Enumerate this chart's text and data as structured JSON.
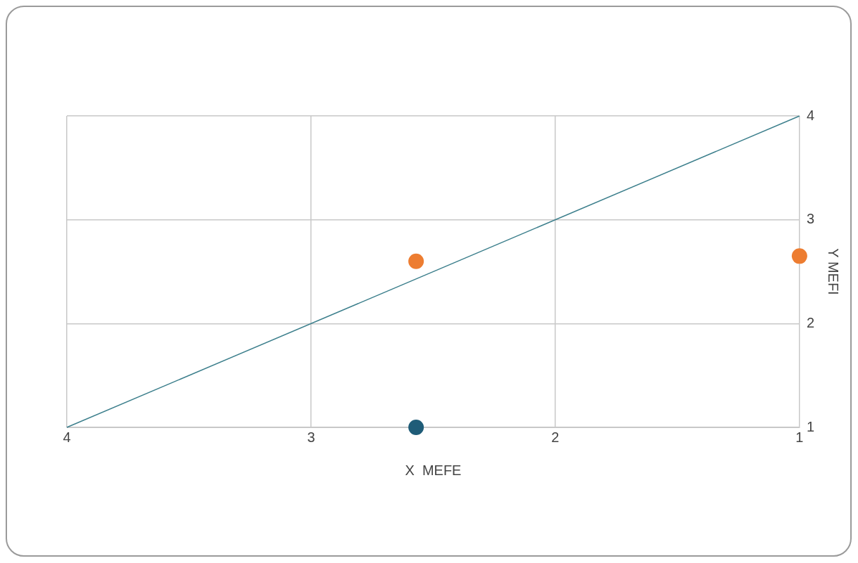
{
  "chart_data": {
    "type": "scatter",
    "xlabel": "X  MEFE",
    "ylabel": "Y MEFI",
    "xlim": [
      4,
      1
    ],
    "xticks": [
      4,
      3,
      2,
      1
    ],
    "ylim": [
      1,
      4
    ],
    "yticks": [
      1,
      2,
      3,
      4
    ],
    "grid": true,
    "legend": false,
    "series": [
      {
        "type": "line",
        "color": "#3c7f8c",
        "marker": "none",
        "x": [
          4,
          1
        ],
        "values": [
          1,
          4
        ]
      },
      {
        "color": "#ed7d31",
        "marker": "circle",
        "x": [
          2.57,
          1
        ],
        "values": [
          2.6,
          2.65
        ]
      },
      {
        "color": "#1f5c78",
        "marker": "circle",
        "x": [
          2.57
        ],
        "values": [
          1
        ]
      }
    ]
  }
}
